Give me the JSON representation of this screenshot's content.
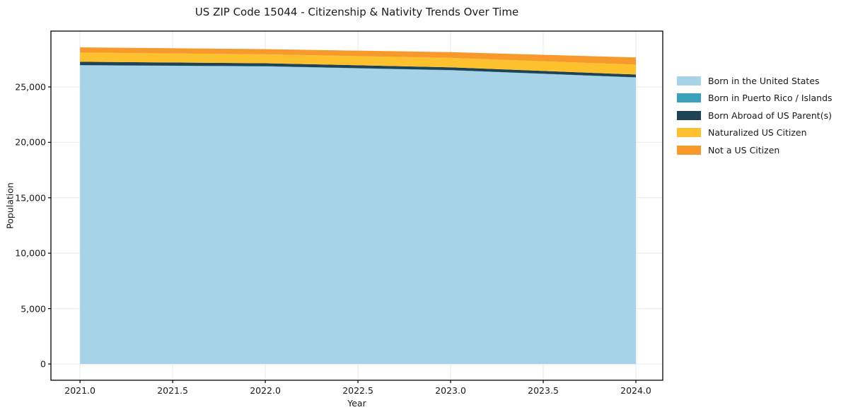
{
  "chart_data": {
    "type": "area",
    "stacked": true,
    "title": "US ZIP Code 15044 - Citizenship & Nativity Trends Over Time",
    "xlabel": "Year",
    "ylabel": "Population",
    "x": [
      2021,
      2022,
      2023,
      2024
    ],
    "series": [
      {
        "name": "Born in the United States",
        "color": "#a7d3e8",
        "values": [
          26950,
          26850,
          26500,
          25850
        ]
      },
      {
        "name": "Born in Puerto Rico / Islands",
        "color": "#3aa2bc",
        "values": [
          20,
          20,
          20,
          20
        ]
      },
      {
        "name": "Born Abroad of US Parent(s)",
        "color": "#1f4254",
        "values": [
          300,
          270,
          250,
          250
        ]
      },
      {
        "name": "Naturalized US Citizen",
        "color": "#fdc12e",
        "values": [
          830,
          800,
          850,
          890
        ]
      },
      {
        "name": "Not a US Citizen",
        "color": "#f8992b",
        "values": [
          470,
          470,
          520,
          650
        ]
      }
    ],
    "xlim": [
      2020.843,
      2024.145
    ],
    "ylim": [
      -1467,
      30038
    ],
    "xticks": [
      2021.0,
      2021.5,
      2022.0,
      2022.5,
      2023.0,
      2023.5,
      2024.0
    ],
    "xtick_labels": [
      "2021.0",
      "2021.5",
      "2022.0",
      "2022.5",
      "2023.0",
      "2023.5",
      "2024.0"
    ],
    "yticks": [
      0,
      5000,
      10000,
      15000,
      20000,
      25000
    ],
    "ytick_labels": [
      "0",
      "5,000",
      "10,000",
      "15,000",
      "20,000",
      "25,000"
    ],
    "grid": true,
    "legend_position": "outside-right",
    "colors": {
      "spine": "#000000",
      "grid": "#e9e9ee",
      "text": "#191919",
      "background": "#ffffff"
    }
  }
}
